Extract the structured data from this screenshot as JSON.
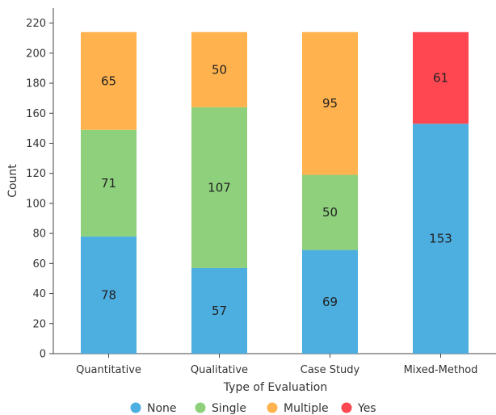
{
  "chart_data": {
    "type": "bar",
    "stacked": true,
    "title": "",
    "xlabel": "Type of Evaluation",
    "ylabel": "Count",
    "ylim": [
      0,
      230
    ],
    "yticks": [
      0,
      20,
      40,
      60,
      80,
      100,
      120,
      140,
      160,
      180,
      200,
      220
    ],
    "grid": false,
    "legend_position": "bottom",
    "categories": [
      "Quantitative",
      "Qualitative",
      "Case Study",
      "Mixed-Method"
    ],
    "series": [
      {
        "name": "None",
        "color": "#4daee0",
        "values": [
          78,
          57,
          69,
          153
        ]
      },
      {
        "name": "Single",
        "color": "#8ed07c",
        "values": [
          71,
          107,
          50,
          0
        ]
      },
      {
        "name": "Multiple",
        "color": "#ffb24d",
        "values": [
          65,
          50,
          95,
          0
        ]
      },
      {
        "name": "Yes",
        "color": "#ff4752",
        "values": [
          0,
          0,
          0,
          61
        ]
      }
    ]
  }
}
